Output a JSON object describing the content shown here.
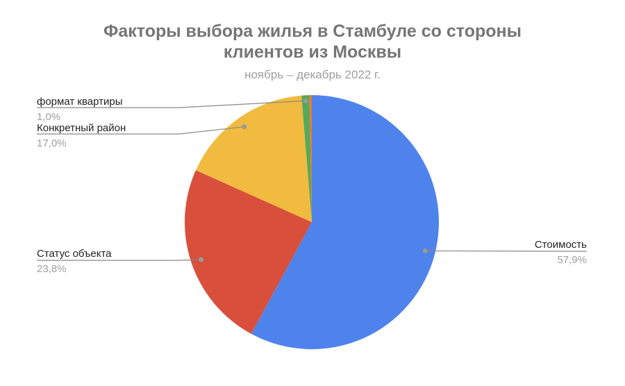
{
  "chart_data": {
    "type": "pie",
    "title": "Факторы выбора жилья в Стамбуле со стороны клиентов из Москвы",
    "title_lines": [
      "Факторы выбора жилья в Стамбуле со стороны",
      "клиентов из Москвы"
    ],
    "subtitle": "ноябрь – декабрь 2022 г.",
    "start": "top, clockwise",
    "slices": [
      {
        "label": "Стоимость",
        "value": 57.9,
        "value_label": "57,9%",
        "color": "#4f83ec"
      },
      {
        "label": "Статус объекта",
        "value": 23.8,
        "value_label": "23,8%",
        "color": "#d84f3c"
      },
      {
        "label": "Конкретный район",
        "value": 17.0,
        "value_label": "17,0%",
        "color": "#f1bb3f"
      },
      {
        "label": "формат квартиры",
        "value": 1.0,
        "value_label": "1,0%",
        "color": "#55a95a"
      },
      {
        "label": "",
        "value": 0.3,
        "value_label": "",
        "color": "#f0762b"
      }
    ]
  }
}
